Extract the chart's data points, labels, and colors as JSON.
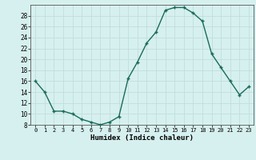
{
  "x": [
    0,
    1,
    2,
    3,
    4,
    5,
    6,
    7,
    8,
    9,
    10,
    11,
    12,
    13,
    14,
    15,
    16,
    17,
    18,
    19,
    20,
    21,
    22,
    23
  ],
  "y": [
    16,
    14,
    10.5,
    10.5,
    10,
    9,
    8.5,
    8,
    8.5,
    9.5,
    16.5,
    19.5,
    23,
    25,
    29,
    29.5,
    29.5,
    28.5,
    27,
    21,
    18.5,
    16,
    13.5,
    15
  ],
  "line_color": "#1a6b5a",
  "marker_color": "#1a6b5a",
  "bg_color": "#d6f0ef",
  "grid_color": "#c0dedd",
  "xlabel": "Humidex (Indice chaleur)",
  "xlim": [
    -0.5,
    23.5
  ],
  "ylim": [
    8,
    30
  ],
  "yticks": [
    8,
    10,
    12,
    14,
    16,
    18,
    20,
    22,
    24,
    26,
    28
  ],
  "xticks": [
    0,
    1,
    2,
    3,
    4,
    5,
    6,
    7,
    8,
    9,
    10,
    11,
    12,
    13,
    14,
    15,
    16,
    17,
    18,
    19,
    20,
    21,
    22,
    23
  ],
  "xlabel_fontsize": 6.5,
  "tick_fontsize": 5.5
}
